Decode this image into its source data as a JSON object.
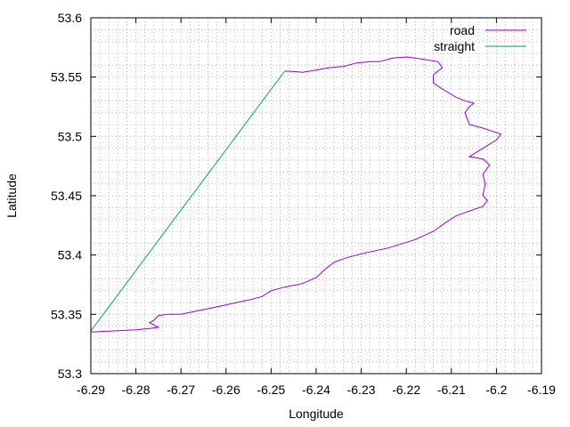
{
  "chart_data": {
    "type": "line",
    "xlabel": "Longitude",
    "ylabel": "Latitude",
    "xlim": [
      -6.29,
      -6.19
    ],
    "ylim": [
      53.3,
      53.6
    ],
    "x_ticks": [
      -6.29,
      -6.28,
      -6.27,
      -6.26,
      -6.25,
      -6.24,
      -6.23,
      -6.22,
      -6.21,
      -6.2,
      -6.19
    ],
    "y_ticks": [
      53.3,
      53.35,
      53.4,
      53.45,
      53.5,
      53.55,
      53.6
    ],
    "x_minor_step": 0.002,
    "y_minor_step": 0.01,
    "grid": true,
    "legend_position": "top-right",
    "series": [
      {
        "name": "road",
        "color": "#9400d3",
        "points": [
          [
            -6.29,
            53.335
          ],
          [
            -6.285,
            53.336
          ],
          [
            -6.28,
            53.337
          ],
          [
            -6.277,
            53.338
          ],
          [
            -6.275,
            53.339
          ],
          [
            -6.276,
            53.341
          ],
          [
            -6.277,
            53.343
          ],
          [
            -6.276,
            53.345
          ],
          [
            -6.275,
            53.349
          ],
          [
            -6.273,
            53.35
          ],
          [
            -6.27,
            53.35
          ],
          [
            -6.265,
            53.354
          ],
          [
            -6.26,
            53.358
          ],
          [
            -6.255,
            53.362
          ],
          [
            -6.252,
            53.365
          ],
          [
            -6.25,
            53.37
          ],
          [
            -6.247,
            53.373
          ],
          [
            -6.243,
            53.376
          ],
          [
            -6.24,
            53.381
          ],
          [
            -6.238,
            53.388
          ],
          [
            -6.236,
            53.394
          ],
          [
            -6.233,
            53.398
          ],
          [
            -6.23,
            53.401
          ],
          [
            -6.224,
            53.406
          ],
          [
            -6.218,
            53.413
          ],
          [
            -6.214,
            53.42
          ],
          [
            -6.211,
            53.428
          ],
          [
            -6.209,
            53.433
          ],
          [
            -6.206,
            53.437
          ],
          [
            -6.203,
            53.441
          ],
          [
            -6.202,
            53.446
          ],
          [
            -6.203,
            53.45
          ],
          [
            -6.2025,
            53.46
          ],
          [
            -6.203,
            53.468
          ],
          [
            -6.2015,
            53.476
          ],
          [
            -6.203,
            53.481
          ],
          [
            -6.206,
            53.483
          ],
          [
            -6.203,
            53.49
          ],
          [
            -6.2,
            53.497
          ],
          [
            -6.199,
            53.502
          ],
          [
            -6.203,
            53.507
          ],
          [
            -6.206,
            53.51
          ],
          [
            -6.207,
            53.52
          ],
          [
            -6.206,
            53.525
          ],
          [
            -6.205,
            53.528
          ],
          [
            -6.207,
            53.53
          ],
          [
            -6.209,
            53.533
          ],
          [
            -6.212,
            53.54
          ],
          [
            -6.214,
            53.545
          ],
          [
            -6.214,
            53.552
          ],
          [
            -6.212,
            53.558
          ],
          [
            -6.213,
            53.563
          ],
          [
            -6.216,
            53.565
          ],
          [
            -6.218,
            53.566
          ],
          [
            -6.22,
            53.567
          ],
          [
            -6.223,
            53.566
          ],
          [
            -6.226,
            53.563
          ],
          [
            -6.228,
            53.563
          ],
          [
            -6.231,
            53.562
          ],
          [
            -6.234,
            53.559
          ],
          [
            -6.237,
            53.558
          ],
          [
            -6.24,
            53.556
          ],
          [
            -6.243,
            53.554
          ],
          [
            -6.246,
            53.555
          ],
          [
            -6.247,
            53.555
          ]
        ]
      },
      {
        "name": "straight",
        "color": "#009e73",
        "points": [
          [
            -6.29,
            53.336
          ],
          [
            -6.247,
            53.555
          ]
        ]
      }
    ]
  }
}
